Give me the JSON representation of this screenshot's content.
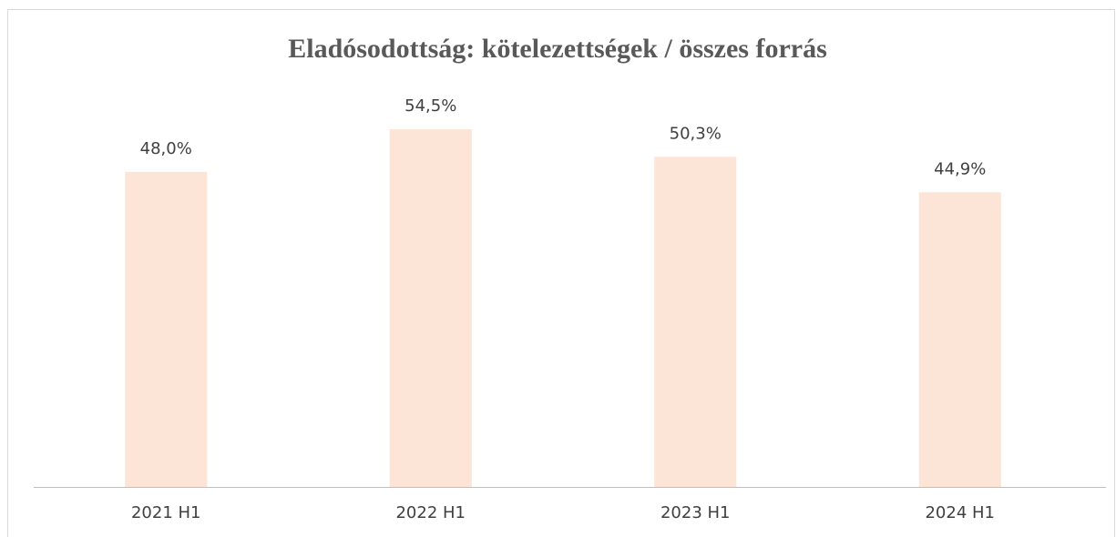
{
  "chart_data": {
    "type": "bar",
    "title": "Eladósodottság: kötelezettségek / összes forrás",
    "categories": [
      "2021 H1",
      "2022 H1",
      "2023 H1",
      "2024 H1"
    ],
    "values": [
      48.0,
      54.5,
      50.3,
      44.9
    ],
    "value_labels": [
      "48,0%",
      "54,5%",
      "50,3%",
      "44,9%"
    ],
    "color": "#fce4d6",
    "ylim": [
      0,
      60
    ]
  }
}
